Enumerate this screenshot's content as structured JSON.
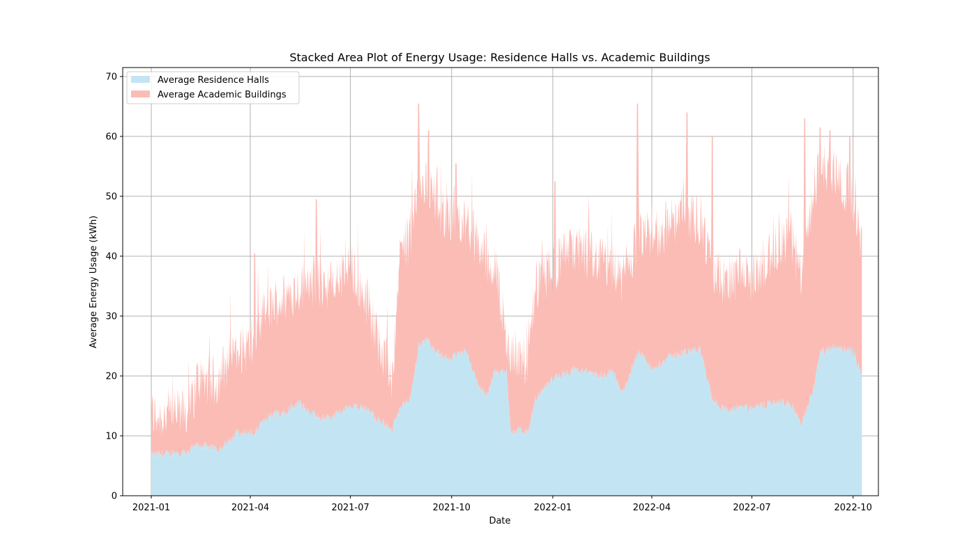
{
  "chart_data": {
    "type": "area",
    "stacked": true,
    "title": "Stacked Area Plot of Energy Usage: Residence Halls vs. Academic Buildings",
    "xlabel": "Date",
    "ylabel": "Average Energy Usage (kWh)",
    "xlim": [
      "2020-12-06",
      "2022-10-24"
    ],
    "ylim": [
      0,
      71.5
    ],
    "x_ticks": [
      "2021-01",
      "2021-04",
      "2021-07",
      "2021-10",
      "2022-01",
      "2022-04",
      "2022-07",
      "2022-10"
    ],
    "y_ticks": [
      0,
      10,
      20,
      30,
      40,
      50,
      60,
      70
    ],
    "grid": true,
    "legend_position": "upper-left",
    "series": [
      {
        "name": "Average Residence Halls",
        "color": "#c3e5f3",
        "points": [
          [
            "2021-01-01",
            6.8
          ],
          [
            "2021-01-20",
            7.0
          ],
          [
            "2021-02-05",
            7.5
          ],
          [
            "2021-02-12",
            8.5
          ],
          [
            "2021-03-01",
            7.8
          ],
          [
            "2021-03-10",
            8.5
          ],
          [
            "2021-03-20",
            10.5
          ],
          [
            "2021-04-05",
            10.5
          ],
          [
            "2021-04-15",
            13.0
          ],
          [
            "2021-05-01",
            14.0
          ],
          [
            "2021-05-15",
            15.5
          ],
          [
            "2021-06-01",
            13.0
          ],
          [
            "2021-06-15",
            13.2
          ],
          [
            "2021-07-01",
            14.8
          ],
          [
            "2021-07-15",
            14.5
          ],
          [
            "2021-07-25",
            13.0
          ],
          [
            "2021-08-08",
            11.0
          ],
          [
            "2021-08-15",
            14.5
          ],
          [
            "2021-08-25",
            16.5
          ],
          [
            "2021-09-01",
            25.0
          ],
          [
            "2021-09-10",
            26.0
          ],
          [
            "2021-09-20",
            23.5
          ],
          [
            "2021-10-01",
            23.0
          ],
          [
            "2021-10-15",
            24.0
          ],
          [
            "2021-10-25",
            18.5
          ],
          [
            "2021-11-01",
            16.5
          ],
          [
            "2021-11-10",
            21.0
          ],
          [
            "2021-11-20",
            20.5
          ],
          [
            "2021-11-24",
            10.8
          ],
          [
            "2021-12-10",
            10.8
          ],
          [
            "2021-12-16",
            16.0
          ],
          [
            "2022-01-01",
            19.5
          ],
          [
            "2022-01-20",
            21.0
          ],
          [
            "2022-02-10",
            20.0
          ],
          [
            "2022-02-25",
            20.5
          ],
          [
            "2022-03-05",
            17.0
          ],
          [
            "2022-03-20",
            24.0
          ],
          [
            "2022-04-01",
            21.0
          ],
          [
            "2022-04-15",
            23.0
          ],
          [
            "2022-05-01",
            24.0
          ],
          [
            "2022-05-15",
            24.5
          ],
          [
            "2022-05-26",
            16.0
          ],
          [
            "2022-06-10",
            14.0
          ],
          [
            "2022-06-20",
            15.0
          ],
          [
            "2022-07-01",
            14.5
          ],
          [
            "2022-07-20",
            15.5
          ],
          [
            "2022-08-05",
            15.5
          ],
          [
            "2022-08-15",
            12.0
          ],
          [
            "2022-08-25",
            17.0
          ],
          [
            "2022-09-01",
            24.0
          ],
          [
            "2022-09-15",
            25.0
          ],
          [
            "2022-10-01",
            24.0
          ],
          [
            "2022-10-09",
            20.0
          ]
        ]
      },
      {
        "name": "Average Academic Buildings",
        "color": "#fbbcb6",
        "points": [
          [
            "2021-01-01",
            13.5
          ],
          [
            "2021-01-20",
            13.5
          ],
          [
            "2021-02-05",
            14.0
          ],
          [
            "2021-02-12",
            19.5
          ],
          [
            "2021-03-01",
            19.0
          ],
          [
            "2021-03-10",
            22.0
          ],
          [
            "2021-03-20",
            24.5
          ],
          [
            "2021-04-05",
            25.0
          ],
          [
            "2021-04-15",
            31.0
          ],
          [
            "2021-05-01",
            33.0
          ],
          [
            "2021-05-15",
            35.0
          ],
          [
            "2021-06-01",
            36.0
          ],
          [
            "2021-06-15",
            35.0
          ],
          [
            "2021-07-01",
            38.5
          ],
          [
            "2021-07-15",
            33.0
          ],
          [
            "2021-07-25",
            27.0
          ],
          [
            "2021-08-08",
            19.5
          ],
          [
            "2021-08-15",
            40.0
          ],
          [
            "2021-08-25",
            44.0
          ],
          [
            "2021-09-01",
            52.0
          ],
          [
            "2021-09-10",
            52.0
          ],
          [
            "2021-09-20",
            47.0
          ],
          [
            "2021-10-01",
            47.0
          ],
          [
            "2021-10-15",
            46.0
          ],
          [
            "2021-10-25",
            42.0
          ],
          [
            "2021-11-01",
            40.0
          ],
          [
            "2021-11-10",
            38.0
          ],
          [
            "2021-11-20",
            26.0
          ],
          [
            "2021-11-24",
            24.0
          ],
          [
            "2021-12-10",
            22.0
          ],
          [
            "2021-12-16",
            35.0
          ],
          [
            "2022-01-01",
            38.0
          ],
          [
            "2022-01-20",
            41.0
          ],
          [
            "2022-02-10",
            40.0
          ],
          [
            "2022-02-25",
            38.0
          ],
          [
            "2022-03-05",
            36.0
          ],
          [
            "2022-03-20",
            43.0
          ],
          [
            "2022-04-01",
            43.0
          ],
          [
            "2022-04-15",
            45.0
          ],
          [
            "2022-05-01",
            47.0
          ],
          [
            "2022-05-15",
            46.0
          ],
          [
            "2022-05-26",
            38.0
          ],
          [
            "2022-06-10",
            35.0
          ],
          [
            "2022-06-20",
            37.0
          ],
          [
            "2022-07-01",
            36.0
          ],
          [
            "2022-07-20",
            40.0
          ],
          [
            "2022-08-05",
            44.0
          ],
          [
            "2022-08-15",
            36.0
          ],
          [
            "2022-08-25",
            50.0
          ],
          [
            "2022-09-01",
            55.0
          ],
          [
            "2022-09-15",
            54.0
          ],
          [
            "2022-10-01",
            50.0
          ],
          [
            "2022-10-09",
            42.0
          ]
        ]
      }
    ],
    "peaks": [
      [
        "2021-09-01",
        65.5
      ],
      [
        "2021-09-10",
        61.0
      ],
      [
        "2021-10-05",
        55.5
      ],
      [
        "2022-01-03",
        52.5
      ],
      [
        "2022-03-19",
        65.5
      ],
      [
        "2022-05-03",
        64.0
      ],
      [
        "2022-05-26",
        60.0
      ],
      [
        "2022-08-18",
        63.0
      ],
      [
        "2022-09-01",
        61.5
      ],
      [
        "2022-09-10",
        61.0
      ],
      [
        "2022-09-28",
        60.0
      ],
      [
        "2021-05-31",
        49.5
      ],
      [
        "2021-04-05",
        40.5
      ]
    ]
  }
}
